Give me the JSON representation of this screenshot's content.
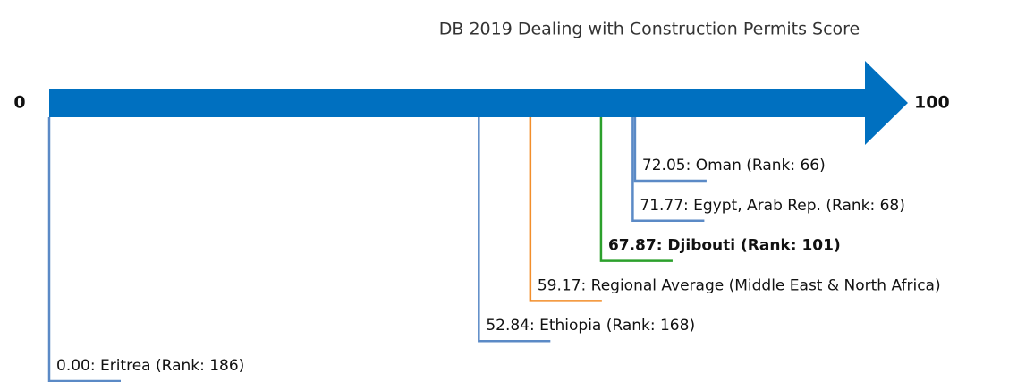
{
  "chart_data": {
    "type": "number-line",
    "title": "DB 2019 Dealing with Construction Permits Score",
    "xlim": [
      0,
      100
    ],
    "xticks": [
      0,
      100
    ],
    "categories": [
      "Eritrea",
      "Ethiopia",
      "Regional Average (Middle East & North Africa)",
      "Djibouti",
      "Egypt, Arab Rep.",
      "Oman"
    ],
    "values": [
      0,
      52.84,
      59.17,
      67.87,
      71.77,
      72.05
    ],
    "value_labels": [
      "0.00: Eritrea (Rank: 186)",
      "52.84: Ethiopia (Rank: 168)",
      "59.17: Regional Average (Middle East & North Africa)",
      "67.87: Djibouti (Rank: 101)",
      "71.77: Egypt, Arab Rep. (Rank: 68)",
      "72.05: Oman (Rank: 66)"
    ],
    "colors": [
      "#5b8ac6",
      "#5b8ac6",
      "#f28e2b",
      "#2ca02c",
      "#5b8ac6",
      "#5b8ac6"
    ],
    "highlight": "Djibouti",
    "axis_color": "#0070c0"
  }
}
